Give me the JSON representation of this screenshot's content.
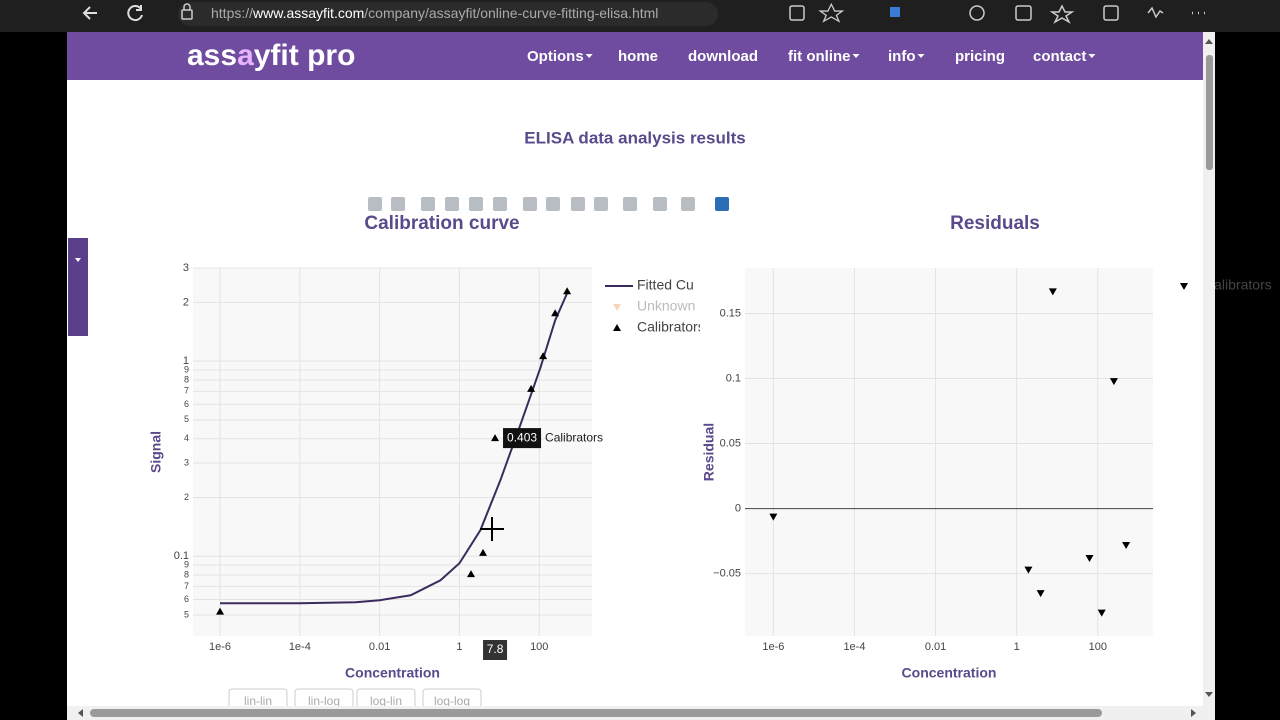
{
  "browser": {
    "url_parts": [
      "https://",
      "www.assayfit.com",
      "/company/assayfit/online-curve-fitting-elisa.html"
    ]
  },
  "nav": {
    "brand_parts": [
      "ass",
      "a",
      "yfit pro"
    ],
    "items": [
      {
        "label": "Options",
        "dropdown": true
      },
      {
        "label": "home",
        "dropdown": false
      },
      {
        "label": "download",
        "dropdown": false
      },
      {
        "label": "fit online",
        "dropdown": true
      },
      {
        "label": "info",
        "dropdown": true
      },
      {
        "label": "pricing",
        "dropdown": false
      },
      {
        "label": "contact",
        "dropdown": true
      }
    ]
  },
  "page": {
    "heading": "ELISA data analysis results",
    "scale_buttons": [
      "lin-lin",
      "lin-log",
      "log-lin",
      "log-log"
    ]
  },
  "chart_data": [
    {
      "type": "line",
      "title": "Calibration curve",
      "x_label": "Concentration",
      "y_label": "Signal",
      "xscale": "log",
      "yscale": "log",
      "xlim": [
        2.1e-07,
        2100
      ],
      "ylim": [
        0.039,
        3
      ],
      "xticks": [
        {
          "value": 1e-06,
          "label": "1e-6"
        },
        {
          "value": 0.0001,
          "label": "1e-4"
        },
        0.01,
        1,
        100
      ],
      "yticks": [
        3,
        2,
        1,
        {
          "value": 0.9,
          "label": "9"
        },
        {
          "value": 0.8,
          "label": "8"
        },
        {
          "value": 0.7,
          "label": "7"
        },
        {
          "value": 0.6,
          "label": "6"
        },
        {
          "value": 0.5,
          "label": "5"
        },
        {
          "value": 0.4,
          "label": "4"
        },
        {
          "value": 0.3,
          "label": "3"
        },
        {
          "value": 0.2,
          "label": "2"
        },
        0.1,
        {
          "value": 0.09,
          "label": "9"
        },
        {
          "value": 0.08,
          "label": "8"
        },
        {
          "value": 0.07,
          "label": "7"
        },
        {
          "value": 0.06,
          "label": "6"
        },
        {
          "value": 0.05,
          "label": "5"
        }
      ],
      "grid": true,
      "legend": true,
      "series": [
        {
          "name": "Fitted Cu",
          "mode": "line",
          "color": "#3b2a5c",
          "x": [
            1e-06,
            0.0001,
            0.0025,
            0.01,
            0.06,
            0.335,
            1,
            3.35,
            10.6,
            33.5,
            106,
            251,
            501
          ],
          "values": [
            0.0574,
            0.0574,
            0.0581,
            0.0595,
            0.0631,
            0.0753,
            0.092,
            0.136,
            0.245,
            0.47,
            0.92,
            1.62,
            2.23
          ]
        },
        {
          "name": "Unknown",
          "mode": "markers",
          "marker": "triangle-down",
          "color": "#f4a261",
          "visible": false,
          "x": [],
          "values": []
        },
        {
          "name": "Calibrators",
          "mode": "markers",
          "marker": "triangle-up",
          "color": "#000000",
          "visible": true,
          "x": [
            1e-06,
            1.95,
            3.9,
            7.8,
            62.5,
            125,
            250,
            500
          ],
          "values": [
            0.052,
            0.081,
            0.104,
            0.403,
            0.72,
            1.06,
            1.76,
            2.28
          ]
        }
      ]
    },
    {
      "type": "scatter",
      "title": "Residuals",
      "x_label": "Concentration",
      "y_label": "Residual",
      "xscale": "log",
      "yscale": "linear",
      "xlim": [
        2e-07,
        2300
      ],
      "ylim": [
        -0.098,
        0.185
      ],
      "xticks": [
        {
          "value": 1e-06,
          "label": "1e-6"
        },
        {
          "value": 0.0001,
          "label": "1e-4"
        },
        0.01,
        1,
        100
      ],
      "yticks": [
        {
          "value": -0.05,
          "label": "−0.05"
        },
        0,
        0.05,
        0.1,
        0.15
      ],
      "grid": true,
      "zeroline": true,
      "legend": true,
      "series": [
        {
          "name": "Calibrators",
          "mode": "markers",
          "marker": "triangle-down",
          "color": "#000000",
          "visible": true,
          "x": [
            1e-06,
            1.95,
            3.9,
            7.8,
            62.5,
            125,
            250,
            500
          ],
          "values": [
            -0.0062,
            -0.047,
            -0.065,
            0.167,
            -0.038,
            -0.08,
            0.098,
            -0.028
          ]
        }
      ]
    }
  ]
}
